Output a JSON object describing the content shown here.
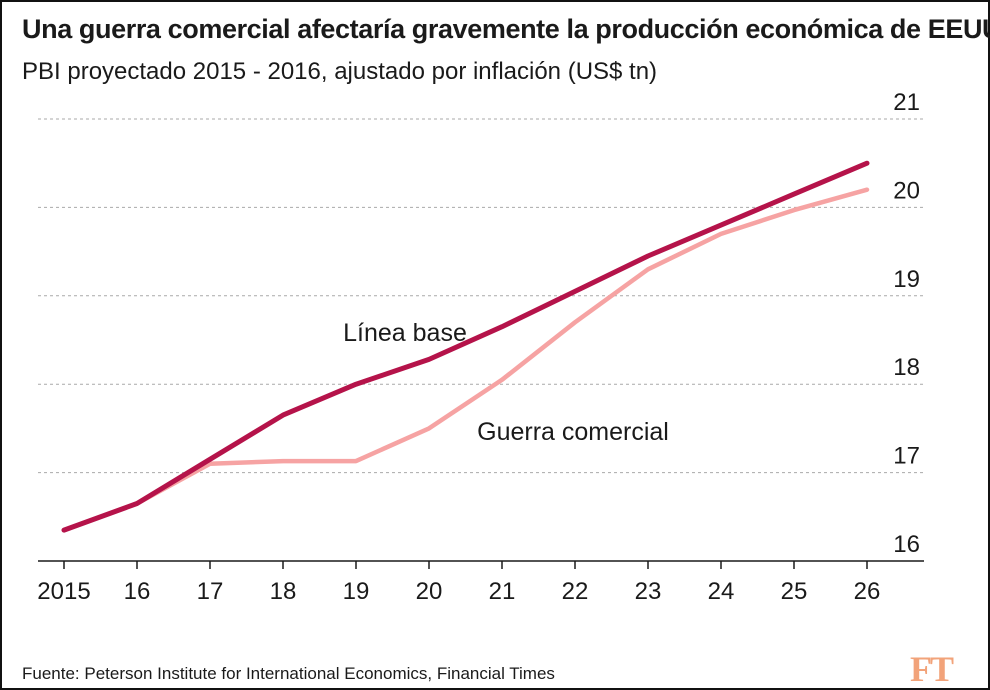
{
  "header": {
    "title": "Una guerra comercial afectaría gravemente la producción económica de EEUU",
    "subtitle": "PBI proyectado 2015 - 2016, ajustado por inflación (US$ tn)"
  },
  "footer": {
    "source": "Fuente: Peterson Institute for International Economics, Financial Times",
    "logo_text": "FT"
  },
  "chart_data": {
    "type": "line",
    "title": "Una guerra comercial afectaría gravemente la producción económica de EEUU",
    "subtitle": "PBI proyectado 2015 - 2016, ajustado por inflación (US$ tn)",
    "x": [
      2015,
      2016,
      2017,
      2018,
      2019,
      2020,
      2021,
      2022,
      2023,
      2024,
      2025,
      2026
    ],
    "x_tick_labels": [
      "2015",
      "16",
      "17",
      "18",
      "19",
      "20",
      "21",
      "22",
      "23",
      "24",
      "25",
      "26"
    ],
    "y_ticks": [
      16,
      17,
      18,
      19,
      20,
      21
    ],
    "ylim": [
      16,
      21
    ],
    "grid": true,
    "y_axis_position": "right",
    "series": [
      {
        "name": "Línea base",
        "color": "#b5134a",
        "values": [
          16.35,
          16.65,
          17.15,
          17.65,
          18.0,
          18.28,
          18.65,
          19.05,
          19.45,
          19.8,
          20.15,
          20.5
        ]
      },
      {
        "name": "Guerra comercial",
        "color": "#f6a3a3",
        "values": [
          16.35,
          16.65,
          17.1,
          17.13,
          17.13,
          17.5,
          18.05,
          18.7,
          19.3,
          19.7,
          19.97,
          20.2
        ]
      }
    ]
  }
}
